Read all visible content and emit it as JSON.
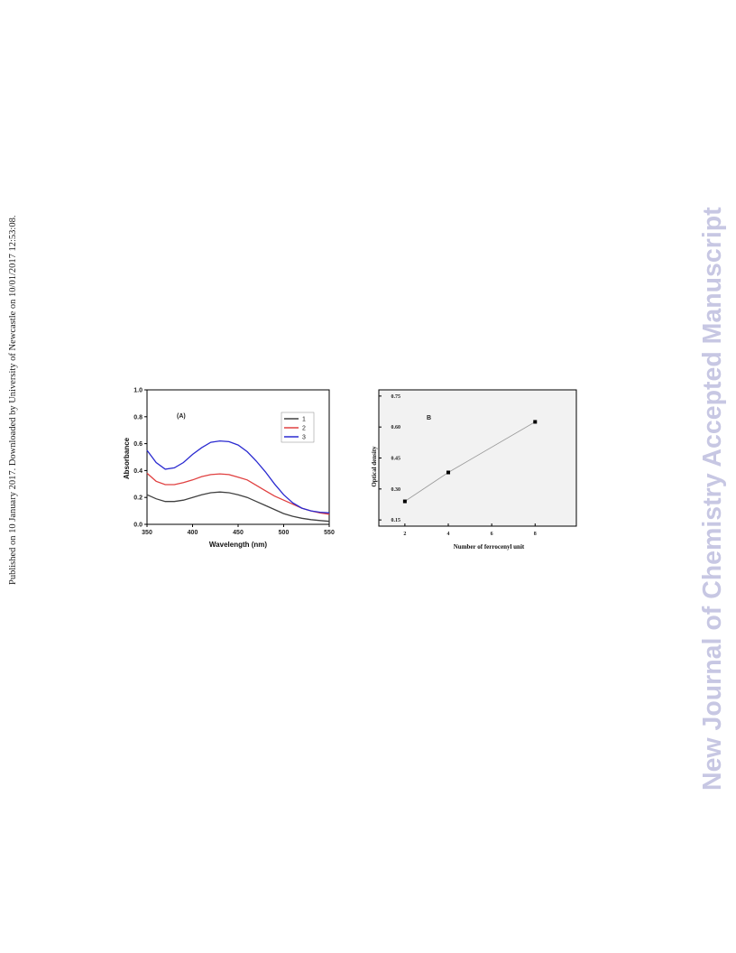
{
  "side_note": "Published on 10 January 2017. Downloaded by University of Newcastle on 10/01/2017 12:53:08.",
  "watermark": "New Journal of Chemistry Accepted Manuscript",
  "chart_data": [
    {
      "type": "line",
      "panel_label": "(A)",
      "xlabel": "Wavelength (nm)",
      "ylabel": "Absorbance",
      "xlim": [
        350,
        550
      ],
      "ylim": [
        0.0,
        1.0
      ],
      "xticks": [
        "350",
        "400",
        "450",
        "500",
        "550"
      ],
      "yticks": [
        "0.0",
        "0.2",
        "0.4",
        "0.6",
        "0.8",
        "1.0"
      ],
      "legend_position": "top-right",
      "grid": false,
      "series": [
        {
          "name": "1",
          "color": "#404040",
          "x": [
            350,
            360,
            370,
            380,
            390,
            400,
            410,
            420,
            430,
            440,
            450,
            460,
            470,
            480,
            490,
            500,
            510,
            520,
            530,
            540,
            550
          ],
          "y": [
            0.22,
            0.19,
            0.17,
            0.17,
            0.18,
            0.2,
            0.22,
            0.235,
            0.24,
            0.235,
            0.22,
            0.2,
            0.17,
            0.14,
            0.11,
            0.08,
            0.06,
            0.045,
            0.035,
            0.028,
            0.022
          ]
        },
        {
          "name": "2",
          "color": "#e04040",
          "x": [
            350,
            360,
            370,
            380,
            390,
            400,
            410,
            420,
            430,
            440,
            450,
            460,
            470,
            480,
            490,
            500,
            510,
            520,
            530,
            540,
            550
          ],
          "y": [
            0.38,
            0.32,
            0.295,
            0.295,
            0.31,
            0.33,
            0.355,
            0.37,
            0.375,
            0.37,
            0.35,
            0.33,
            0.29,
            0.25,
            0.21,
            0.18,
            0.15,
            0.12,
            0.1,
            0.085,
            0.075
          ]
        },
        {
          "name": "3",
          "color": "#2a2ad0",
          "x": [
            350,
            360,
            370,
            380,
            390,
            400,
            410,
            420,
            430,
            440,
            450,
            460,
            470,
            480,
            490,
            500,
            510,
            520,
            530,
            540,
            550
          ],
          "y": [
            0.55,
            0.46,
            0.41,
            0.42,
            0.46,
            0.52,
            0.57,
            0.61,
            0.62,
            0.615,
            0.59,
            0.54,
            0.47,
            0.39,
            0.3,
            0.22,
            0.16,
            0.12,
            0.1,
            0.09,
            0.085
          ]
        }
      ]
    },
    {
      "type": "scatter",
      "panel_label": "B",
      "xlabel": "Number of ferrocenyl unit",
      "ylabel": "Optical density",
      "xlim": [
        0.8,
        9.9
      ],
      "ylim": [
        0.12,
        0.78
      ],
      "xticks": [
        "2",
        "4",
        "6",
        "8"
      ],
      "yticks": [
        "0.15",
        "0.30",
        "0.45",
        "0.60",
        "0.75"
      ],
      "grid": false,
      "series": [
        {
          "color": "#000000",
          "x": [
            2,
            4,
            8
          ],
          "y": [
            0.24,
            0.38,
            0.625
          ],
          "fit_line": true
        }
      ]
    }
  ]
}
